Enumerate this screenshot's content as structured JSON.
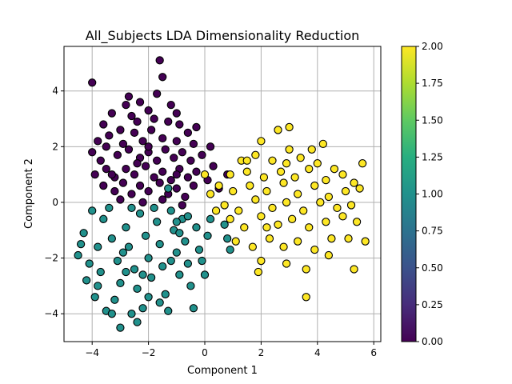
{
  "chart_data": {
    "type": "scatter",
    "title": "All_Subjects LDA Dimensionality Reduction",
    "xlabel": "Component 1",
    "ylabel": "Component 2",
    "xlim": [
      -5.0,
      6.25
    ],
    "ylim": [
      -5.0,
      5.6
    ],
    "xticks": [
      -4,
      -2,
      0,
      2,
      4,
      6
    ],
    "yticks": [
      -4,
      -2,
      0,
      2,
      4
    ],
    "grid": true,
    "colormap": "viridis",
    "colorbar": {
      "range": [
        0.0,
        2.0
      ],
      "ticks": [
        "0.00",
        "0.25",
        "0.50",
        "0.75",
        "1.00",
        "1.25",
        "1.50",
        "1.75",
        "2.00"
      ]
    },
    "marker": {
      "edgecolor": "#000000"
    },
    "series": [
      {
        "class_value": 0,
        "color": "#440154",
        "points": [
          [
            -4.0,
            4.3
          ],
          [
            -1.6,
            5.1
          ],
          [
            -1.5,
            4.5
          ],
          [
            -3.3,
            3.2
          ],
          [
            -2.8,
            3.5
          ],
          [
            -2.6,
            3.1
          ],
          [
            -2.0,
            3.3
          ],
          [
            -1.2,
            3.5
          ],
          [
            -3.6,
            2.8
          ],
          [
            -3.0,
            2.6
          ],
          [
            -2.4,
            2.9
          ],
          [
            -1.8,
            3.0
          ],
          [
            -1.3,
            2.9
          ],
          [
            -0.9,
            2.8
          ],
          [
            -0.6,
            2.5
          ],
          [
            -3.8,
            2.2
          ],
          [
            -3.4,
            2.4
          ],
          [
            -2.9,
            2.1
          ],
          [
            -2.5,
            2.5
          ],
          [
            -2.2,
            2.2
          ],
          [
            -1.9,
            2.6
          ],
          [
            -1.5,
            2.3
          ],
          [
            -1.0,
            2.2
          ],
          [
            -0.4,
            2.1
          ],
          [
            0.2,
            2.0
          ],
          [
            -4.0,
            1.8
          ],
          [
            -3.7,
            1.5
          ],
          [
            -3.1,
            1.7
          ],
          [
            -2.7,
            1.9
          ],
          [
            -2.3,
            1.6
          ],
          [
            -2.0,
            1.8
          ],
          [
            -1.7,
            1.5
          ],
          [
            -1.4,
            1.9
          ],
          [
            -1.1,
            1.6
          ],
          [
            -0.8,
            1.8
          ],
          [
            -0.5,
            1.5
          ],
          [
            -0.1,
            1.7
          ],
          [
            0.3,
            1.3
          ],
          [
            -3.9,
            1.0
          ],
          [
            -3.5,
            1.2
          ],
          [
            -3.2,
            0.9
          ],
          [
            -2.8,
            1.2
          ],
          [
            -2.5,
            1.0
          ],
          [
            -2.1,
            1.3
          ],
          [
            -1.8,
            0.9
          ],
          [
            -1.5,
            1.1
          ],
          [
            -1.2,
            0.8
          ],
          [
            -0.9,
            1.2
          ],
          [
            -0.6,
            0.9
          ],
          [
            -0.3,
            1.1
          ],
          [
            0.1,
            0.8
          ],
          [
            -3.6,
            0.6
          ],
          [
            -3.2,
            0.4
          ],
          [
            -2.9,
            0.7
          ],
          [
            -2.6,
            0.3
          ],
          [
            -2.3,
            0.6
          ],
          [
            -2.0,
            0.4
          ],
          [
            -1.6,
            0.7
          ],
          [
            -1.3,
            0.3
          ],
          [
            -1.0,
            0.5
          ],
          [
            -0.7,
            0.2
          ],
          [
            -0.4,
            0.6
          ],
          [
            0.5,
            0.5
          ],
          [
            -3.0,
            0.1
          ],
          [
            -2.2,
            0.0
          ],
          [
            -1.5,
            0.1
          ],
          [
            -0.8,
            -0.1
          ],
          [
            0.8,
            1.0
          ],
          [
            -2.7,
            3.8
          ],
          [
            -2.3,
            3.6
          ],
          [
            -1.7,
            3.9
          ],
          [
            -1.0,
            3.2
          ],
          [
            -0.3,
            2.7
          ],
          [
            -3.5,
            2.0
          ],
          [
            -2.0,
            2.0
          ],
          [
            -1.0,
            1.0
          ],
          [
            -2.4,
            1.4
          ],
          [
            -3.3,
            1.0
          ]
        ]
      },
      {
        "class_value": 1,
        "color": "#21918c",
        "points": [
          [
            -4.5,
            -1.9
          ],
          [
            -4.3,
            -1.1
          ],
          [
            -4.1,
            -2.2
          ],
          [
            -4.2,
            -2.8
          ],
          [
            -3.9,
            -3.4
          ],
          [
            -3.8,
            -1.6
          ],
          [
            -3.5,
            -3.9
          ],
          [
            -3.3,
            -4.0
          ],
          [
            -3.0,
            -4.5
          ],
          [
            -2.6,
            -4.0
          ],
          [
            -2.4,
            -4.3
          ],
          [
            -2.2,
            -3.8
          ],
          [
            -3.6,
            -0.6
          ],
          [
            -3.3,
            -1.3
          ],
          [
            -3.1,
            -2.1
          ],
          [
            -3.0,
            -2.9
          ],
          [
            -2.8,
            -0.9
          ],
          [
            -2.7,
            -1.6
          ],
          [
            -2.5,
            -2.4
          ],
          [
            -2.4,
            -3.1
          ],
          [
            -2.3,
            -0.4
          ],
          [
            -2.1,
            -1.2
          ],
          [
            -2.0,
            -2.0
          ],
          [
            -1.9,
            -2.7
          ],
          [
            -1.7,
            -0.7
          ],
          [
            -1.6,
            -1.5
          ],
          [
            -1.5,
            -2.3
          ],
          [
            -1.4,
            -3.3
          ],
          [
            -1.3,
            -3.9
          ],
          [
            -1.2,
            -0.3
          ],
          [
            -1.1,
            -1.0
          ],
          [
            -1.0,
            -1.8
          ],
          [
            -0.9,
            -2.6
          ],
          [
            -0.8,
            -0.6
          ],
          [
            -0.7,
            -1.4
          ],
          [
            -0.6,
            -2.2
          ],
          [
            -0.5,
            -3.0
          ],
          [
            -0.4,
            -3.8
          ],
          [
            -0.3,
            -0.9
          ],
          [
            -0.2,
            -1.7
          ],
          [
            0.0,
            -2.6
          ],
          [
            0.1,
            -1.2
          ],
          [
            0.2,
            -0.6
          ],
          [
            0.8,
            -1.3
          ],
          [
            0.9,
            -1.7
          ],
          [
            0.7,
            -0.8
          ],
          [
            -4.0,
            -0.3
          ],
          [
            -3.7,
            -2.5
          ],
          [
            -3.4,
            -0.2
          ],
          [
            -2.9,
            -1.8
          ],
          [
            -2.6,
            -0.2
          ],
          [
            -2.2,
            -2.6
          ],
          [
            -1.8,
            -0.2
          ],
          [
            -1.6,
            -3.6
          ],
          [
            -1.2,
            -2.1
          ],
          [
            -0.9,
            -1.1
          ],
          [
            -0.6,
            -0.5
          ],
          [
            -4.4,
            -1.5
          ],
          [
            -3.8,
            -3.0
          ],
          [
            -2.0,
            -3.4
          ],
          [
            -1.3,
            0.5
          ],
          [
            -3.2,
            -3.5
          ],
          [
            -2.8,
            -2.5
          ],
          [
            -1.0,
            -0.7
          ],
          [
            -0.1,
            -2.1
          ]
        ]
      },
      {
        "class_value": 2,
        "color": "#fde725",
        "points": [
          [
            2.0,
            2.2
          ],
          [
            2.6,
            2.6
          ],
          [
            3.0,
            2.7
          ],
          [
            3.8,
            1.9
          ],
          [
            4.2,
            2.1
          ],
          [
            1.3,
            1.5
          ],
          [
            1.8,
            1.7
          ],
          [
            2.4,
            1.5
          ],
          [
            2.9,
            1.4
          ],
          [
            3.4,
            1.6
          ],
          [
            4.0,
            1.4
          ],
          [
            4.6,
            1.2
          ],
          [
            5.6,
            1.4
          ],
          [
            0.9,
            1.0
          ],
          [
            1.5,
            1.1
          ],
          [
            2.1,
            0.9
          ],
          [
            2.7,
            1.1
          ],
          [
            3.2,
            0.9
          ],
          [
            3.7,
            1.2
          ],
          [
            4.3,
            0.8
          ],
          [
            4.9,
            1.0
          ],
          [
            5.3,
            0.7
          ],
          [
            0.5,
            0.6
          ],
          [
            1.0,
            0.4
          ],
          [
            1.6,
            0.6
          ],
          [
            2.2,
            0.4
          ],
          [
            2.8,
            0.7
          ],
          [
            3.3,
            0.3
          ],
          [
            3.9,
            0.6
          ],
          [
            4.4,
            0.2
          ],
          [
            5.0,
            0.4
          ],
          [
            5.5,
            0.5
          ],
          [
            0.7,
            -0.1
          ],
          [
            1.2,
            -0.3
          ],
          [
            1.8,
            0.1
          ],
          [
            2.4,
            -0.2
          ],
          [
            2.9,
            0.0
          ],
          [
            3.5,
            -0.3
          ],
          [
            4.1,
            0.0
          ],
          [
            4.7,
            -0.2
          ],
          [
            5.2,
            -0.1
          ],
          [
            0.9,
            -0.6
          ],
          [
            1.4,
            -0.9
          ],
          [
            2.0,
            -0.5
          ],
          [
            2.6,
            -0.8
          ],
          [
            3.1,
            -0.6
          ],
          [
            3.7,
            -0.9
          ],
          [
            4.3,
            -0.7
          ],
          [
            4.9,
            -0.5
          ],
          [
            5.4,
            -0.7
          ],
          [
            1.1,
            -1.4
          ],
          [
            1.7,
            -1.6
          ],
          [
            2.3,
            -1.3
          ],
          [
            2.8,
            -1.6
          ],
          [
            3.3,
            -1.4
          ],
          [
            3.9,
            -1.7
          ],
          [
            4.5,
            -1.3
          ],
          [
            5.1,
            -1.3
          ],
          [
            5.7,
            -1.4
          ],
          [
            2.0,
            -2.1
          ],
          [
            2.9,
            -2.2
          ],
          [
            3.6,
            -2.4
          ],
          [
            4.4,
            -1.9
          ],
          [
            5.3,
            -2.4
          ],
          [
            1.9,
            -2.5
          ],
          [
            3.6,
            -3.4
          ],
          [
            0.0,
            1.0
          ],
          [
            0.4,
            -0.3
          ],
          [
            0.2,
            0.3
          ],
          [
            1.5,
            1.5
          ],
          [
            3.0,
            1.9
          ],
          [
            2.2,
            -0.9
          ]
        ]
      }
    ]
  }
}
